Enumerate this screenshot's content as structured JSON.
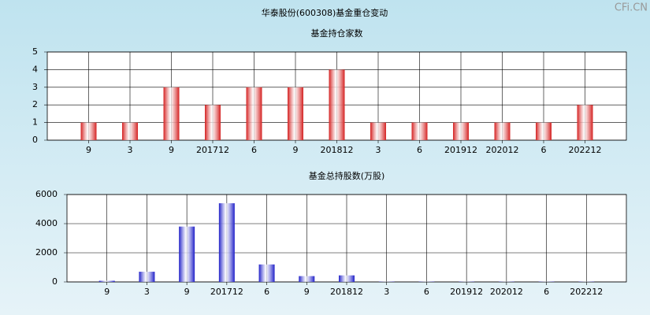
{
  "title": "华泰股份(600308)基金重仓变动",
  "watermark": "CFi.CN",
  "chart_data": [
    {
      "type": "bar",
      "title": "基金持仓家数",
      "categories": [
        "9",
        "3",
        "9",
        "201712",
        "6",
        "9",
        "201812",
        "3",
        "6",
        "201912",
        "202012",
        "6",
        "202212"
      ],
      "values": [
        1,
        1,
        3,
        2,
        3,
        3,
        4,
        1,
        1,
        1,
        1,
        1,
        2
      ],
      "color": "#d42020",
      "ylim": [
        0,
        5
      ],
      "yticks": [
        0,
        1,
        2,
        3,
        4,
        5
      ],
      "grid": true
    },
    {
      "type": "bar",
      "title": "基金总持股数(万股)",
      "categories": [
        "9",
        "3",
        "9",
        "201712",
        "6",
        "9",
        "201812",
        "3",
        "6",
        "201912",
        "202012",
        "6",
        "202212"
      ],
      "values": [
        80,
        700,
        3800,
        5400,
        1200,
        400,
        450,
        20,
        20,
        20,
        20,
        20,
        20
      ],
      "color": "#2020c8",
      "ylim": [
        0,
        6000
      ],
      "yticks": [
        0,
        2000,
        4000,
        6000
      ],
      "grid": true
    }
  ]
}
